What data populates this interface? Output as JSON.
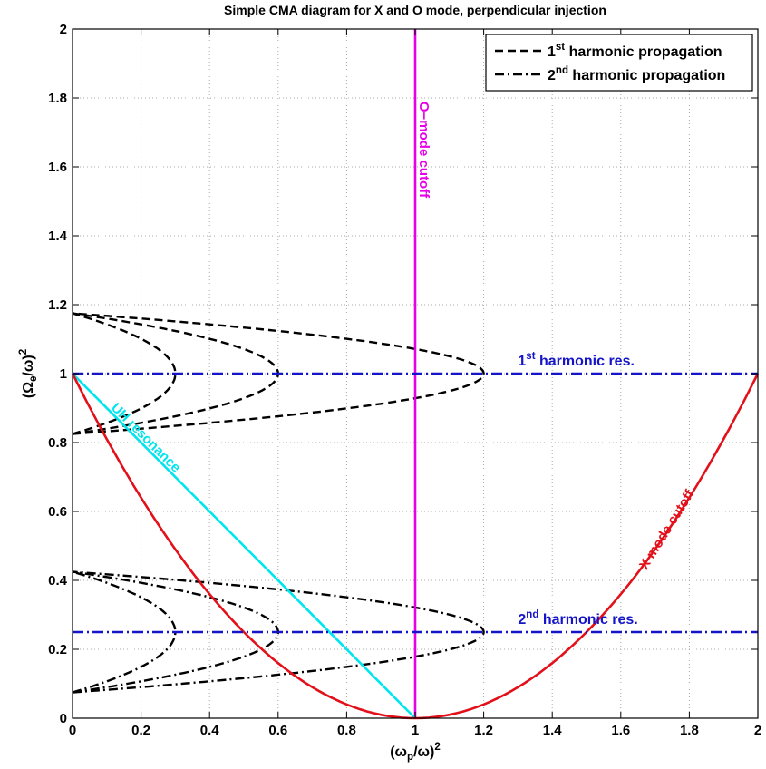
{
  "chart_data": {
    "type": "line",
    "title": "Simple CMA diagram for X and O mode, perpendicular injection",
    "xlabel": {
      "base": "(ω",
      "sub": "p",
      "mid": "/ω)",
      "sup": "2"
    },
    "ylabel": {
      "base": "(Ω",
      "sub": "e",
      "mid": "/ω)",
      "sup": "2"
    },
    "xlim": [
      0,
      2
    ],
    "ylim": [
      0,
      2
    ],
    "xticks": [
      "0",
      "0.2",
      "0.4",
      "0.6",
      "0.8",
      "1",
      "1.2",
      "1.4",
      "1.6",
      "1.8",
      "2"
    ],
    "yticks": [
      "0",
      "0.2",
      "0.4",
      "0.6",
      "0.8",
      "1",
      "1.2",
      "1.4",
      "1.6",
      "1.8",
      "2"
    ],
    "grid": true,
    "legend_position": "top-right",
    "legend": [
      {
        "base": "1",
        "sup": "st",
        "rest": " harmonic propagation",
        "style": "dashed"
      },
      {
        "base": "2",
        "sup": "nd",
        "rest": " harmonic propagation",
        "style": "dashdot"
      }
    ],
    "annotations": {
      "o_mode": "O−mode cutoff",
      "uh": "UH resonance",
      "x_mode": "X mode cutoff",
      "first_res": {
        "base": "1",
        "sup": "st",
        "rest": " harmonic res."
      },
      "second_res": {
        "base": "2",
        "sup": "nd",
        "rest": " harmonic res."
      }
    },
    "colors": {
      "o_mode": "#e600e6",
      "uh": "#00e5ee",
      "x_mode": "#e3101a",
      "resonance": "#1414c8",
      "propagation": "#000000",
      "grid": "#aaaaaa"
    },
    "series": [
      {
        "kind": "o_mode_cutoff",
        "points": [
          [
            1,
            0
          ],
          [
            1,
            2
          ]
        ]
      },
      {
        "kind": "uh_resonance",
        "points": [
          [
            0,
            1
          ],
          [
            1,
            0
          ]
        ]
      },
      {
        "kind": "x_mode_cutoff",
        "curve": "(1-x)^2",
        "points": [
          [
            0,
            1
          ],
          [
            0.2,
            0.64
          ],
          [
            0.4,
            0.36
          ],
          [
            0.6,
            0.16
          ],
          [
            0.8,
            0.04
          ],
          [
            1,
            0
          ],
          [
            1.2,
            0.04
          ],
          [
            1.4,
            0.16
          ],
          [
            1.6,
            0.36
          ],
          [
            1.8,
            0.64
          ],
          [
            2,
            1
          ]
        ]
      },
      {
        "kind": "first_harmonic_res",
        "points": [
          [
            0,
            1
          ],
          [
            2,
            1
          ]
        ]
      },
      {
        "kind": "second_harmonic_res",
        "points": [
          [
            0,
            0.25
          ],
          [
            2,
            0.25
          ]
        ]
      },
      {
        "kind": "first_harmonic_propagation",
        "y_top": 1.175,
        "y_bottom": 0.825,
        "y_res": 1,
        "x_max": [
          0.3,
          0.6,
          1.2
        ]
      },
      {
        "kind": "second_harmonic_propagation",
        "y_top": 0.425,
        "y_bottom": 0.075,
        "y_res": 0.25,
        "x_max": [
          0.3,
          0.6,
          1.2
        ]
      }
    ]
  }
}
